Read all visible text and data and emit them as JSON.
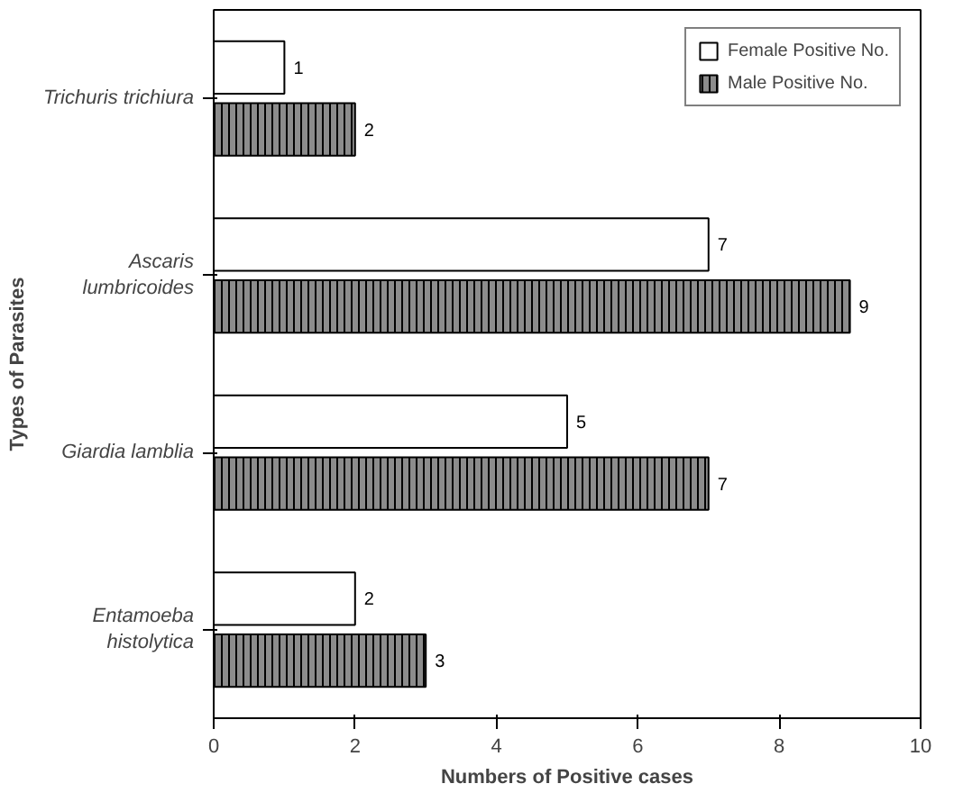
{
  "chart_data": {
    "type": "bar",
    "orientation": "horizontal",
    "xlabel": "Numbers of Positive cases",
    "ylabel": "Types of Parasites",
    "categories": [
      "Trichuris trichiura",
      "Ascaris\nlumbricoides",
      "Giardia lamblia",
      "Entamoeba\nhistolytica"
    ],
    "series": [
      {
        "name": "Female Positive No.",
        "color": "#ffffff",
        "values": [
          1,
          7,
          5,
          2
        ]
      },
      {
        "name": "Male Positive No.",
        "color": "#8c8c8c",
        "values": [
          2,
          9,
          7,
          3
        ]
      }
    ],
    "xlim": [
      0,
      10
    ],
    "xticks": [
      0,
      2,
      4,
      6,
      8,
      10
    ],
    "data_labels": true,
    "legend": "top right",
    "grid": false
  }
}
